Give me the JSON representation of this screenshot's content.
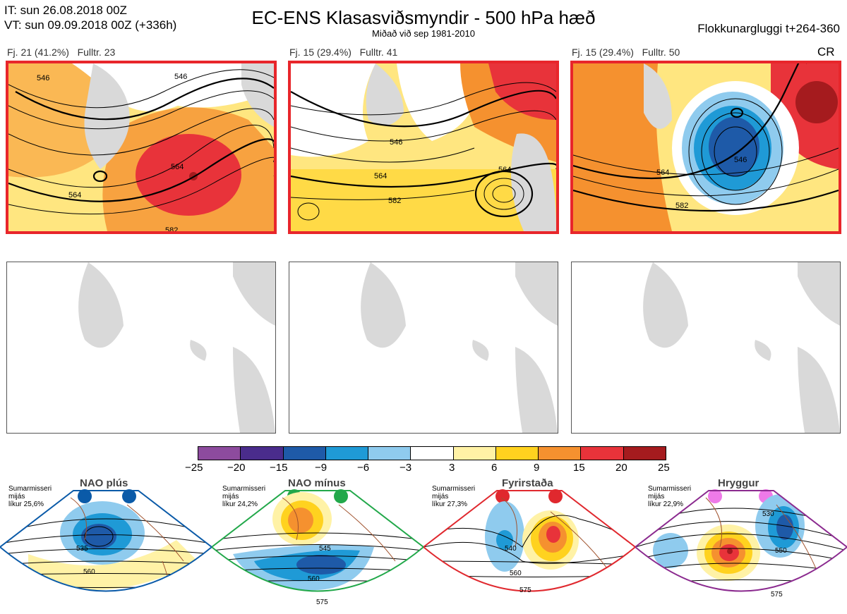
{
  "header": {
    "it_line": "IT: sun 26.08.2018 00Z",
    "vt_line": "VT: sun 09.09.2018 00Z  (+336h)",
    "title": "EC-ENS Klasasviðsmyndir - 500 hPa hæð",
    "subtitle": "Miðað við sep 1981-2010",
    "window": "Flokkunargluggi t+264-360"
  },
  "clusters": [
    {
      "label": "Fj. 21 (41.2%)   Fulltr. 23",
      "contours": [
        "546",
        "564",
        "582",
        "564",
        "546"
      ]
    },
    {
      "label": "Fj. 15 (29.4%)   Fulltr. 41",
      "contours": [
        "546",
        "564",
        "582",
        "564"
      ]
    },
    {
      "label": "Fj. 15 (29.4%)   Fulltr. 50",
      "contours": [
        "546",
        "564",
        "582"
      ],
      "tag": "CR"
    }
  ],
  "colorbar": {
    "ticks": [
      "−25",
      "−20",
      "−15",
      "−9",
      "−6",
      "−3",
      "3",
      "6",
      "9",
      "15",
      "20",
      "25"
    ],
    "colors": [
      "#8d4b9e",
      "#4a2c8c",
      "#1e5aa8",
      "#1f9ad6",
      "#8fcbee",
      "#ffffff",
      "#fff2a6",
      "#ffd21f",
      "#f5912f",
      "#e8333a",
      "#a51b1e"
    ]
  },
  "regimes": [
    {
      "name": "NAO plús",
      "season": "Sumarmisseri",
      "median": "mijás",
      "prob": "líkur 25,6%",
      "color": "#0a5aa8",
      "contours": [
        "535",
        "560"
      ]
    },
    {
      "name": "NAO mínus",
      "season": "Sumarmisseri",
      "median": "mijás",
      "prob": "líkur 24,2%",
      "color": "#22a84a",
      "contours": [
        "545",
        "560",
        "575"
      ]
    },
    {
      "name": "Fyrirstaða",
      "season": "Sumarmisseri",
      "median": "mijás",
      "prob": "líkur 27,3%",
      "color": "#e0282e",
      "contours": [
        "540",
        "560",
        "575"
      ]
    },
    {
      "name": "Hryggur",
      "season": "Sumarmisseri",
      "median": "mijás",
      "prob": "líkur 22,9%",
      "color": "#8b2a8f",
      "dot_color": "#ee7ae8",
      "contours": [
        "530",
        "550",
        "575"
      ]
    }
  ]
}
